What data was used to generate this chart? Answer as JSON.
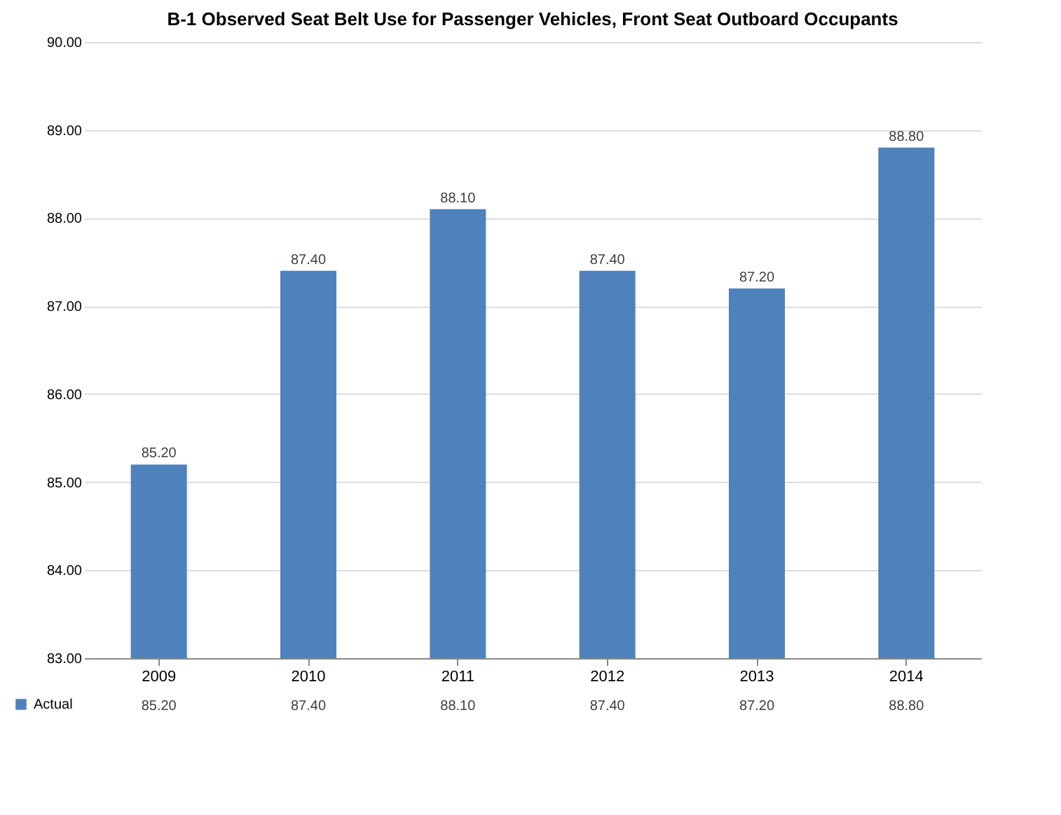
{
  "chart_data": {
    "type": "bar",
    "title": "B-1 Observed Seat Belt Use for Passenger Vehicles, Front Seat Outboard Occupants",
    "categories": [
      "2009",
      "2010",
      "2011",
      "2012",
      "2013",
      "2014"
    ],
    "series": [
      {
        "name": "Actual",
        "color": "#4f81bd",
        "values": [
          85.2,
          87.4,
          88.1,
          87.4,
          87.2,
          88.8
        ],
        "value_labels": [
          "85.20",
          "87.40",
          "88.10",
          "87.40",
          "87.20",
          "88.80"
        ]
      }
    ],
    "ylim": [
      83,
      90
    ],
    "yticks": [
      {
        "value": 83,
        "label": "83.00"
      },
      {
        "value": 84,
        "label": "84.00"
      },
      {
        "value": 85,
        "label": "85.00"
      },
      {
        "value": 86,
        "label": "86.00"
      },
      {
        "value": 87,
        "label": "87.00"
      },
      {
        "value": 88,
        "label": "88.00"
      },
      {
        "value": 89,
        "label": "89.00"
      },
      {
        "value": 90,
        "label": "90.00"
      }
    ],
    "grid": "y",
    "legend": "bottom left"
  }
}
